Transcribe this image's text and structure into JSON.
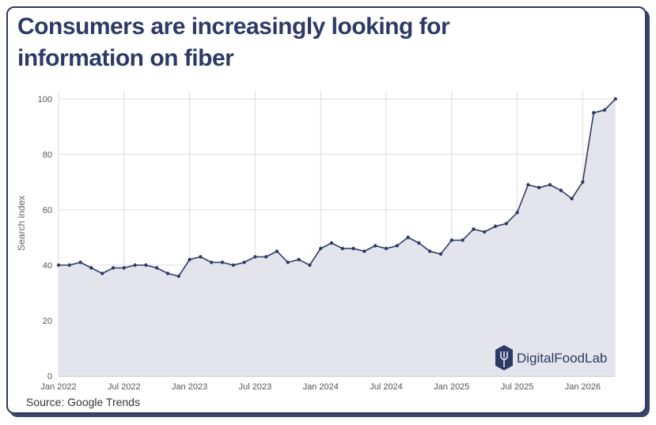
{
  "title": "Consumers are increasingly looking for information on fiber",
  "source": "Source: Google Trends",
  "logo": {
    "text": "DigitalFoodLab",
    "icon": "fork-hexagon-icon"
  },
  "colors": {
    "line": "#2e3a66",
    "area": "#e4e5ec",
    "grid": "#dcdcdc",
    "title": "#2e3a66"
  },
  "chart_data": {
    "type": "area",
    "ylabel": "Search index",
    "ylim": [
      0,
      100
    ],
    "yticks": [
      0,
      20,
      40,
      60,
      80,
      100
    ],
    "xticks": [
      "Jan 2022",
      "Jul 2022",
      "Jan 2023",
      "Jul 2023",
      "Jan 2024",
      "Jul 2024",
      "Jan 2025",
      "Jul 2025",
      "Jan 2026"
    ],
    "grid": true,
    "series": [
      {
        "x_start": "2022-01",
        "values": [
          40,
          40,
          41,
          39,
          37,
          39,
          39,
          40,
          40,
          39,
          37,
          36,
          42,
          43,
          41,
          41,
          40,
          41,
          43,
          43,
          45,
          41,
          42,
          40,
          46,
          48,
          46,
          46,
          45,
          47,
          46,
          47,
          50,
          48,
          45,
          44,
          49,
          49,
          53,
          52,
          54,
          55,
          59,
          69,
          68,
          69,
          67,
          64,
          70,
          95,
          96,
          100
        ]
      }
    ]
  }
}
